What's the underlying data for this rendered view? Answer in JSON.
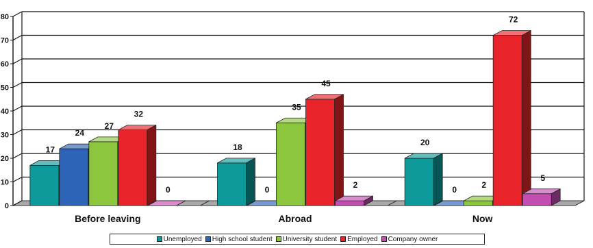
{
  "chart_data": {
    "type": "bar",
    "categories": [
      "Before leaving",
      "Abroad",
      "Now"
    ],
    "series": [
      {
        "name": "Unemployed",
        "values": [
          17,
          18,
          20
        ],
        "color": "#0e9a9a"
      },
      {
        "name": "High school student",
        "values": [
          24,
          0,
          0
        ],
        "color": "#2e64b8"
      },
      {
        "name": "University student",
        "values": [
          27,
          35,
          2
        ],
        "color": "#8cc63f"
      },
      {
        "name": "Employed",
        "values": [
          32,
          45,
          72
        ],
        "color": "#e8242a"
      },
      {
        "name": "Company owner",
        "values": [
          0,
          2,
          5
        ],
        "color": "#c44db2"
      }
    ],
    "ylim": [
      0,
      80
    ],
    "yticks": [
      0,
      10,
      20,
      30,
      40,
      50,
      60,
      70,
      80
    ],
    "grid": true,
    "legend": "bottom"
  }
}
